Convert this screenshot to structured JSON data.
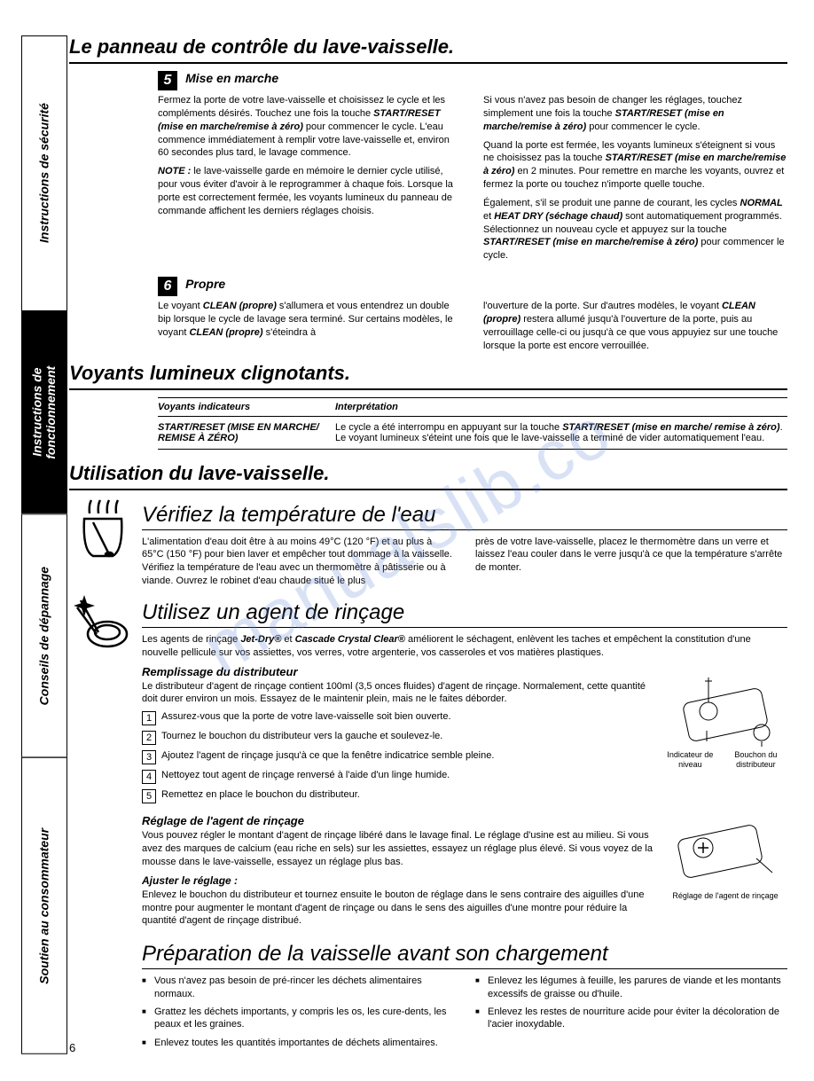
{
  "page_number": "6",
  "watermark": "manualslib.co",
  "colors": {
    "text": "#000000",
    "bg": "#ffffff",
    "watermark": "#6a8ed8"
  },
  "tabs": [
    {
      "label": "Instructions de sécurité",
      "style": "white"
    },
    {
      "label": "Instructions de\nfonctionnement",
      "style": "black"
    },
    {
      "label": "Conseils de dépannage",
      "style": "white"
    },
    {
      "label": "Soutien au consommateur",
      "style": "white"
    }
  ],
  "h1_1": "Le panneau de contrôle du lave-vaisselle.",
  "step5": {
    "num": "5",
    "title": "Mise en marche",
    "left_paras": [
      "Fermez la porte de votre lave-vaisselle et choisissez le cycle et les compléments désirés. Touchez une fois la touche <strong class='em'>START/RESET (mise en marche/remise à zéro)</strong> pour commencer le cycle. L'eau commence immédiatement à remplir votre lave-vaisselle et, environ 60 secondes plus tard, le lavage commence.",
      "<strong class='em'>NOTE :</strong> le lave-vaisselle garde en mémoire le dernier cycle utilisé, pour vous éviter d'avoir à le reprogrammer à chaque fois. Lorsque la porte est correctement fermée, les voyants lumineux du panneau de commande affichent les derniers réglages choisis."
    ],
    "right_paras": [
      "Si vous n'avez pas besoin de changer les réglages, touchez simplement une fois la touche <strong class='em'>START/RESET (mise en marche/remise à zéro)</strong> pour commencer le cycle.",
      "Quand la porte est fermée, les voyants lumineux s'éteignent si vous ne choisissez pas la touche <strong class='em'>START/RESET (mise en marche/remise à zéro)</strong> en 2 minutes. Pour remettre en marche les voyants, ouvrez et fermez la porte ou touchez n'importe quelle touche.",
      "Également, s'il se produit une panne de courant, les cycles <strong class='em'>NORMAL</strong> et <strong class='em'>HEAT DRY (séchage chaud)</strong> sont automatiquement programmés. Sélectionnez un nouveau cycle et appuyez sur la touche <strong class='em'>START/RESET (mise en marche/remise à zéro)</strong> pour commencer le cycle."
    ]
  },
  "step6": {
    "num": "6",
    "title": "Propre",
    "left": "Le voyant <strong class='em'>CLEAN (propre)</strong> s'allumera et vous entendrez un double bip lorsque le cycle de lavage sera terminé. Sur certains modèles, le voyant <strong class='em'>CLEAN (propre)</strong> s'éteindra à",
    "right": "l'ouverture de la porte. Sur d'autres modèles, le voyant <strong class='em'>CLEAN (propre)</strong> restera allumé jusqu'à l'ouverture de la porte, puis au verrouillage celle-ci ou jusqu'à ce que vous appuyiez sur une touche lorsque la porte est encore verrouillée."
  },
  "h1_2": "Voyants lumineux clignotants.",
  "vtable": {
    "head1": "Voyants indicateurs",
    "head2": "Interprétation",
    "row1_c1": "START/RESET (MISE EN MARCHE/ REMISE À ZÉRO)",
    "row1_c2": "Le cycle a été interrompu en appuyant sur la touche <strong class='em'>START/RESET (mise en marche/ remise à zéro)</strong>. Le voyant lumineux s'éteint une fois que le lave-vaisselle a terminé de vider automatiquement l'eau."
  },
  "h1_3": "Utilisation du lave-vaisselle.",
  "temp": {
    "title": "Vérifiez la température de l'eau",
    "left": "L'alimentation d'eau doit être à au moins 49°C (120 °F) et au plus à 65°C (150 °F) pour bien laver et empêcher tout dommage à la vaisselle. Vérifiez la température de l'eau avec un thermomètre à pâtisserie ou à viande. Ouvrez le robinet d'eau chaude situé le plus",
    "right": "près de votre lave-vaisselle, placez le thermomètre dans un verre et laissez l'eau couler dans le verre jusqu'à ce que la température s'arrête de monter."
  },
  "rinse": {
    "title": "Utilisez un agent de rinçage",
    "intro": "Les agents de rinçage <strong class='em'>Jet-Dry®</strong> et <strong class='em'>Cascade Crystal Clear®</strong> améliorent le séchagent, enlèvent les taches et empêchent la constitution d'une nouvelle pellicule sur vos assiettes, vos verres, votre argenterie, vos casseroles et vos matières plastiques.",
    "filling_title": "Remplissage du distributeur",
    "filling_intro": "Le distributeur d'agent de rinçage contient 100ml (3,5 onces fluides) d'agent de rinçage. Normalement, cette quantité doit durer environ un mois. Essayez de le maintenir plein, mais ne le faites déborder.",
    "steps": [
      "Assurez-vous que la porte de votre lave-vaisselle soit bien ouverte.",
      "Tournez le bouchon du distributeur vers la gauche et soulevez-le.",
      "Ajoutez l'agent de rinçage jusqu'à ce que la fenêtre indicatrice semble pleine.",
      "Nettoyez tout agent de rinçage renversé à l'aide d'un linge humide.",
      "Remettez en place le bouchon du distributeur."
    ],
    "setting_title": "Réglage de l'agent de rinçage",
    "setting_body": "Vous pouvez régler le montant d'agent de rinçage libéré dans le lavage final. Le réglage d'usine est au milieu. Si vous avez des marques de calcium (eau riche en sels) sur les assiettes, essayez un réglage plus élevé. Si vous voyez de la mousse dans le lave-vaisselle, essayez un réglage plus bas.",
    "adjust_title": "Ajuster le réglage :",
    "adjust_body": "Enlevez le bouchon du distributeur et tournez ensuite le bouton de réglage dans le sens contraire des aiguilles d'une montre pour augmenter le montant d'agent de rinçage ou dans le sens des aiguilles d'une montre pour réduire la quantité d'agent de rinçage distribué.",
    "diagram1_label1": "Indicateur de niveau",
    "diagram1_label2": "Bouchon du distributeur",
    "diagram2_label": "Réglage de l'agent de rinçage"
  },
  "prep": {
    "title": "Préparation de la vaisselle avant son chargement",
    "left_bullets": [
      "Vous n'avez pas besoin de pré-rincer les déchets alimentaires normaux.",
      "Grattez les déchets importants, y compris les os, les cure-dents, les peaux et les graines.",
      "Enlevez toutes les quantités importantes de déchets alimentaires."
    ],
    "right_bullets": [
      "Enlevez les légumes à feuille, les parures de viande et les montants excessifs de graisse ou d'huile.",
      "Enlevez les restes de nourriture acide pour éviter la décoloration de l'acier inoxydable."
    ]
  }
}
